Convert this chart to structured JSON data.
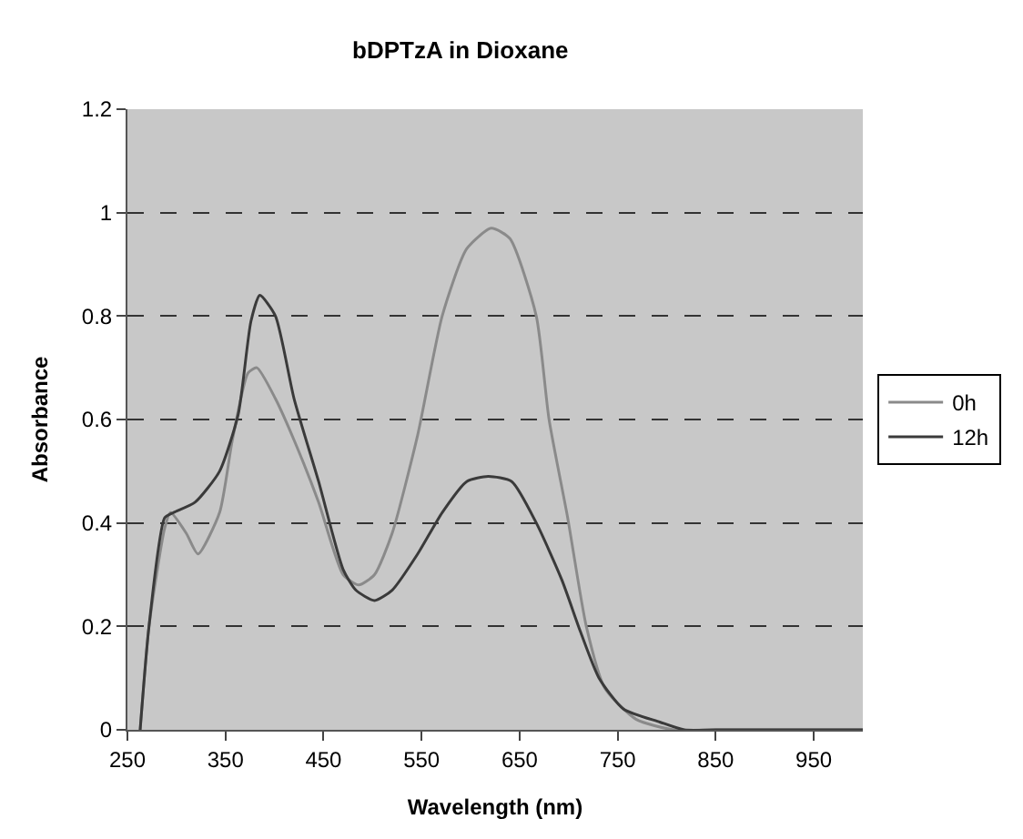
{
  "chart_data": {
    "type": "line",
    "title": "bDPTzA in Dioxane",
    "xlabel": "Wavelength (nm)",
    "ylabel": "Absorbance",
    "xlim": [
      250,
      1000
    ],
    "xticks": [
      250,
      350,
      450,
      550,
      650,
      750,
      850,
      950
    ],
    "ylim": [
      0,
      1.2
    ],
    "yticks": [
      0,
      0.2,
      0.4,
      0.6,
      0.8,
      1,
      1.2
    ],
    "grid": "y",
    "legend": "right",
    "marker": "none",
    "line_style": "solid",
    "series": [
      {
        "name": "0h",
        "color": "#8a8a8a",
        "x": [
          263,
          272,
          288,
          294,
          310,
          322,
          344,
          357,
          373,
          382,
          401,
          420,
          445,
          470,
          486,
          502,
          520,
          546,
          571,
          596,
          621,
          640,
          667,
          680,
          699,
          718,
          737,
          769,
          807,
          850,
          1000
        ],
        "values": [
          0,
          0.2,
          0.39,
          0.42,
          0.38,
          0.34,
          0.42,
          0.56,
          0.69,
          0.7,
          0.64,
          0.56,
          0.44,
          0.3,
          0.28,
          0.3,
          0.38,
          0.57,
          0.8,
          0.93,
          0.97,
          0.95,
          0.8,
          0.6,
          0.41,
          0.2,
          0.08,
          0.02,
          0,
          0,
          0
        ]
      },
      {
        "name": "12h",
        "color": "#3a3a3a",
        "x": [
          263,
          272,
          288,
          297,
          319,
          344,
          363,
          376,
          385,
          401,
          420,
          445,
          470,
          483,
          502,
          520,
          546,
          571,
          596,
          618,
          642,
          667,
          693,
          712,
          731,
          756,
          793,
          818,
          850,
          1000
        ],
        "values": [
          0,
          0.2,
          0.41,
          0.42,
          0.44,
          0.5,
          0.61,
          0.79,
          0.84,
          0.8,
          0.64,
          0.48,
          0.31,
          0.27,
          0.25,
          0.27,
          0.34,
          0.42,
          0.48,
          0.49,
          0.48,
          0.4,
          0.29,
          0.19,
          0.1,
          0.04,
          0.015,
          0,
          0,
          0
        ]
      }
    ]
  }
}
